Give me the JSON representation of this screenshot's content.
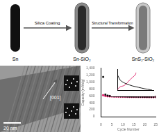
{
  "schematic": {
    "stages": [
      {
        "label": "Sn"
      },
      {
        "label": "Sn-SiO₂"
      },
      {
        "label": "SnS₂-SiO₂"
      }
    ],
    "steps": [
      "Silica Coating",
      "Structural Transformation"
    ]
  },
  "tem_image": {
    "direction": "[001]",
    "scale_bar": "20 nm"
  },
  "chart_data": [
    {
      "type": "line",
      "x_label": "Cycle Number",
      "y_label": "Capacity (mAh/g)",
      "x": [
        1,
        2,
        3,
        4,
        5,
        6,
        7,
        8,
        9,
        10,
        11,
        12,
        13,
        14,
        15,
        16,
        17,
        18,
        19,
        20,
        21,
        22,
        23,
        24,
        25
      ],
      "xlim": [
        0,
        25
      ],
      "xticks": [
        0,
        5,
        10,
        15,
        20,
        25
      ],
      "ylim": [
        0,
        1400
      ],
      "yticks": [
        0,
        200,
        400,
        600,
        800,
        1000,
        1200,
        1400
      ],
      "series": [
        {
          "color": "#000000",
          "marker": "square",
          "values": [
            1150,
            640,
            610,
            600,
            595,
            590,
            590,
            588,
            585,
            585,
            583,
            582,
            580,
            580,
            578,
            578,
            577,
            576,
            575,
            575,
            574,
            573,
            572,
            572,
            571
          ]
        },
        {
          "color": "#e0206a",
          "marker": "circle",
          "values": [
            620,
            600,
            592,
            588,
            585,
            583,
            582,
            580,
            579,
            578,
            577,
            576,
            575,
            574,
            574,
            573,
            572,
            571,
            571,
            570,
            569,
            569,
            568,
            568,
            567
          ]
        }
      ]
    },
    {
      "type": "line",
      "tick_labels": false,
      "xlim": [
        0,
        1200
      ],
      "ylim": [
        0,
        3
      ],
      "series": [
        {
          "color": "#000000",
          "x": [
            0,
            50,
            100,
            200,
            300,
            500,
            700,
            900,
            1100,
            1150
          ],
          "values": [
            2.2,
            1.8,
            1.4,
            1.1,
            0.9,
            0.6,
            0.4,
            0.2,
            0.05,
            0.01
          ]
        },
        {
          "color": "#e0206a",
          "x": [
            0,
            100,
            200,
            300,
            400,
            500,
            600,
            620
          ],
          "values": [
            0.05,
            0.5,
            0.6,
            0.9,
            1.4,
            1.8,
            2.2,
            2.5
          ]
        }
      ]
    }
  ]
}
